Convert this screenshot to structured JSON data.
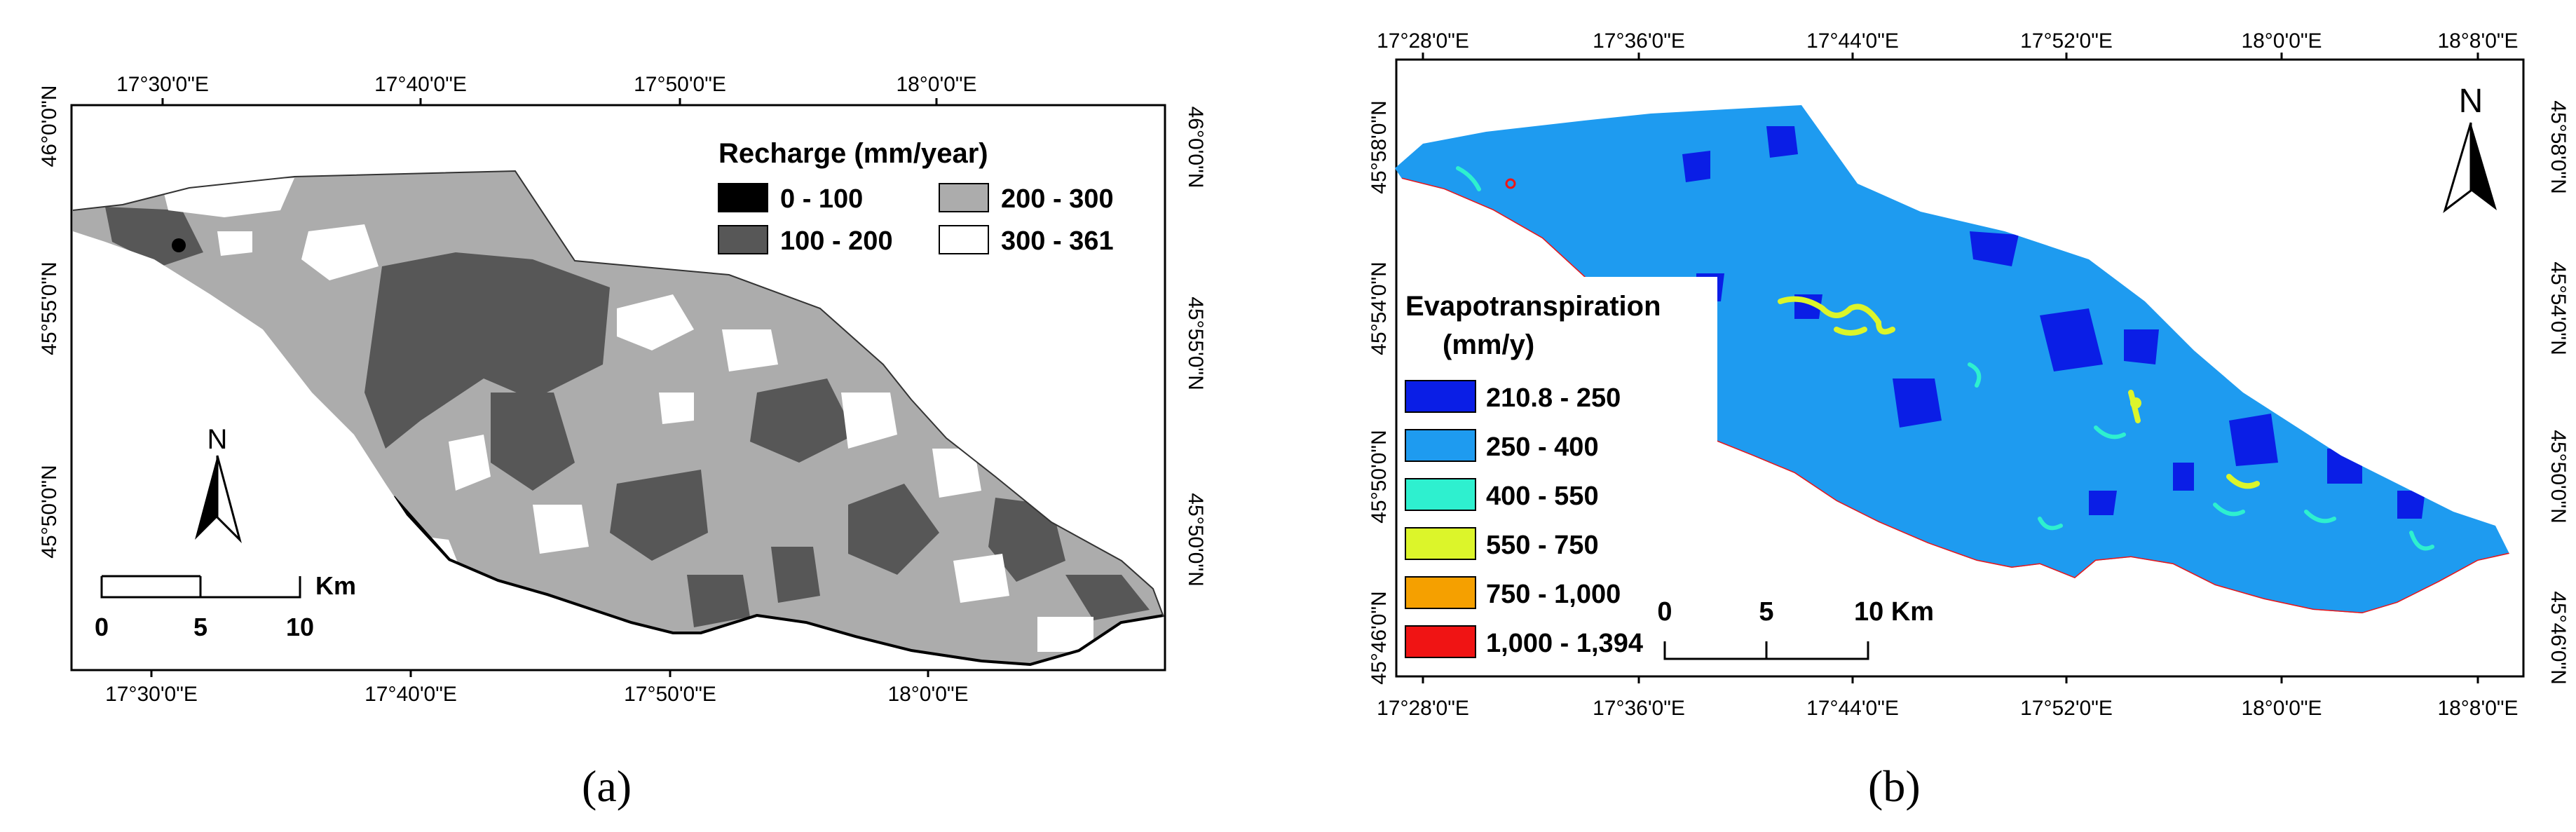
{
  "panel_a": {
    "caption": "(a)",
    "top_ticks": [
      "17°30'0\"E",
      "17°40'0\"E",
      "17°50'0\"E",
      "18°0'0\"E"
    ],
    "bottom_ticks": [
      "17°30'0\"E",
      "17°40'0\"E",
      "17°50'0\"E",
      "18°0'0\"E"
    ],
    "left_ticks": [
      "46°0'0\"N",
      "45°55'0\"N",
      "45°50'0\"N"
    ],
    "right_ticks": [
      "46°0'0\"N",
      "45°55'0\"N",
      "45°50'0\"N"
    ],
    "legend": {
      "title": "Recharge (mm/year)",
      "items": [
        {
          "label": "0 - 100",
          "color": "#000000"
        },
        {
          "label": "100 - 200",
          "color": "#575757"
        },
        {
          "label": "200 - 300",
          "color": "#acacac"
        },
        {
          "label": "300 - 361",
          "color": "#ffffff"
        }
      ]
    },
    "north_label": "N",
    "scale": {
      "labels": [
        "0",
        "5",
        "10"
      ],
      "unit": "Km"
    }
  },
  "panel_b": {
    "caption": "(b)",
    "top_ticks": [
      "17°28'0\"E",
      "17°36'0\"E",
      "17°44'0\"E",
      "17°52'0\"E",
      "18°0'0\"E",
      "18°8'0\"E"
    ],
    "bottom_ticks": [
      "17°28'0\"E",
      "17°36'0\"E",
      "17°44'0\"E",
      "17°52'0\"E",
      "18°0'0\"E",
      "18°8'0\"E"
    ],
    "left_ticks": [
      "45°58'0\"N",
      "45°54'0\"N",
      "45°50'0\"N",
      "45°46'0\"N"
    ],
    "right_ticks": [
      "45°58'0\"N",
      "45°54'0\"N",
      "45°50'0\"N",
      "45°46'0\"N"
    ],
    "legend": {
      "title_line1": "Evapotranspiration",
      "title_line2": "(mm/y)",
      "items": [
        {
          "label": "210.8 - 250",
          "color": "#0a1ee6"
        },
        {
          "label": "250 - 400",
          "color": "#1e9bf0"
        },
        {
          "label": "400 - 550",
          "color": "#2ef0cf"
        },
        {
          "label": "550 - 750",
          "color": "#dcf52a"
        },
        {
          "label": "750 - 1,000",
          "color": "#f5a000"
        },
        {
          "label": "1,000 - 1,394",
          "color": "#f01414"
        }
      ]
    },
    "north_label": "N",
    "scale": {
      "labels": [
        "0",
        "5",
        "10 Km"
      ]
    }
  }
}
